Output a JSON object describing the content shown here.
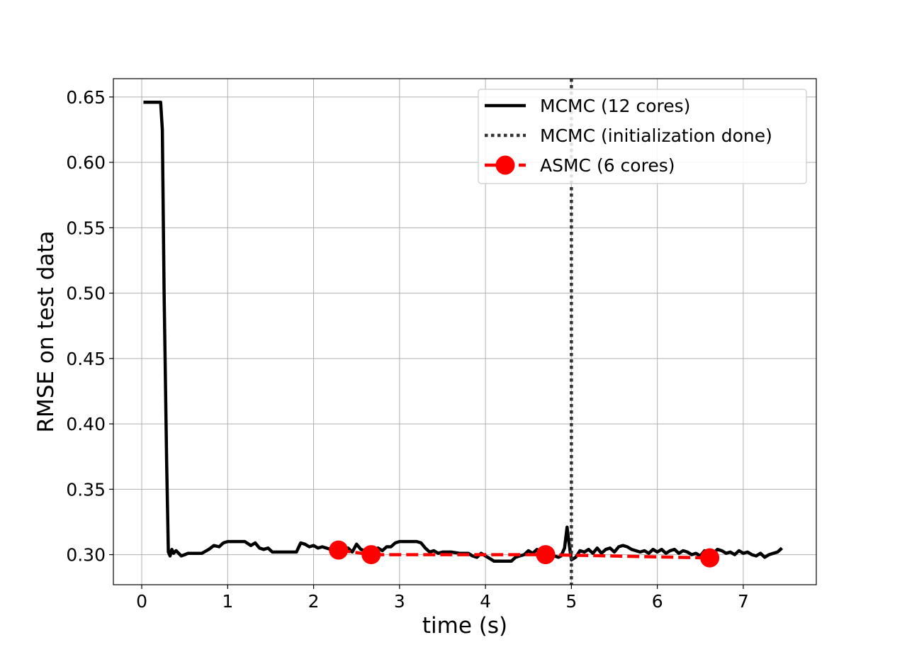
{
  "chart_data": {
    "type": "line",
    "xlabel": "time (s)",
    "ylabel": "RMSE on test data",
    "xlim": [
      -0.33,
      7.85
    ],
    "ylim": [
      0.277,
      0.664
    ],
    "x_ticks": [
      0,
      1,
      2,
      3,
      4,
      5,
      6,
      7
    ],
    "y_ticks": [
      0.3,
      0.35,
      0.4,
      0.45,
      0.5,
      0.55,
      0.6,
      0.65
    ],
    "x_tick_labels": [
      "0",
      "1",
      "2",
      "3",
      "4",
      "5",
      "6",
      "7"
    ],
    "y_tick_labels": [
      "0.30",
      "0.35",
      "0.40",
      "0.45",
      "0.50",
      "0.55",
      "0.60",
      "0.65"
    ],
    "grid": true,
    "legend_position": "top-right",
    "series": [
      {
        "name": "MCMC (12 cores)",
        "style": "solid",
        "color": "#000000",
        "x": [
          0.02,
          0.22,
          0.24,
          0.26,
          0.29,
          0.31,
          0.33,
          0.35,
          0.37,
          0.4,
          0.43,
          0.46,
          0.5,
          0.54,
          0.6,
          0.7,
          0.78,
          0.84,
          0.9,
          0.95,
          1.0,
          1.05,
          1.1,
          1.2,
          1.27,
          1.32,
          1.37,
          1.42,
          1.47,
          1.52,
          1.56,
          1.62,
          1.7,
          1.8,
          1.85,
          1.9,
          1.95,
          2.0,
          2.05,
          2.1,
          2.2,
          2.3,
          2.4,
          2.45,
          2.5,
          2.55,
          2.6,
          2.65,
          2.7,
          2.75,
          2.8,
          2.85,
          2.9,
          2.95,
          3.0,
          3.1,
          3.2,
          3.25,
          3.3,
          3.35,
          3.4,
          3.45,
          3.5,
          3.55,
          3.6,
          3.7,
          3.8,
          3.85,
          3.9,
          3.95,
          4.0,
          4.05,
          4.1,
          4.2,
          4.3,
          4.35,
          4.4,
          4.45,
          4.5,
          4.55,
          4.6,
          4.65,
          4.7,
          4.75,
          4.8,
          4.85,
          4.88,
          4.92,
          4.95,
          4.97,
          5.0,
          5.05,
          5.1,
          5.15,
          5.2,
          5.25,
          5.3,
          5.35,
          5.4,
          5.45,
          5.5,
          5.55,
          5.6,
          5.65,
          5.7,
          5.75,
          5.8,
          5.85,
          5.9,
          5.95,
          6.0,
          6.05,
          6.1,
          6.15,
          6.2,
          6.25,
          6.3,
          6.35,
          6.4,
          6.45,
          6.5,
          6.55,
          6.6,
          6.65,
          6.7,
          6.75,
          6.8,
          6.85,
          6.9,
          6.95,
          7.0,
          7.05,
          7.1,
          7.15,
          7.2,
          7.25,
          7.3,
          7.35,
          7.4,
          7.45
        ],
        "values": [
          0.646,
          0.646,
          0.625,
          0.5,
          0.37,
          0.302,
          0.299,
          0.304,
          0.301,
          0.303,
          0.301,
          0.299,
          0.3,
          0.301,
          0.301,
          0.301,
          0.304,
          0.307,
          0.306,
          0.309,
          0.31,
          0.31,
          0.31,
          0.31,
          0.307,
          0.309,
          0.305,
          0.304,
          0.305,
          0.302,
          0.302,
          0.302,
          0.302,
          0.302,
          0.309,
          0.308,
          0.306,
          0.307,
          0.305,
          0.306,
          0.304,
          0.304,
          0.305,
          0.302,
          0.308,
          0.304,
          0.303,
          0.301,
          0.304,
          0.305,
          0.303,
          0.306,
          0.306,
          0.309,
          0.31,
          0.31,
          0.31,
          0.309,
          0.305,
          0.302,
          0.303,
          0.301,
          0.302,
          0.302,
          0.302,
          0.301,
          0.301,
          0.299,
          0.298,
          0.301,
          0.299,
          0.297,
          0.295,
          0.295,
          0.295,
          0.298,
          0.299,
          0.3,
          0.303,
          0.301,
          0.304,
          0.3,
          0.299,
          0.301,
          0.299,
          0.298,
          0.299,
          0.305,
          0.321,
          0.31,
          0.296,
          0.298,
          0.303,
          0.302,
          0.304,
          0.301,
          0.305,
          0.301,
          0.304,
          0.305,
          0.302,
          0.306,
          0.307,
          0.306,
          0.304,
          0.303,
          0.302,
          0.303,
          0.301,
          0.304,
          0.302,
          0.304,
          0.301,
          0.303,
          0.304,
          0.301,
          0.303,
          0.302,
          0.3,
          0.301,
          0.299,
          0.303,
          0.302,
          0.301,
          0.304,
          0.303,
          0.301,
          0.302,
          0.3,
          0.303,
          0.301,
          0.302,
          0.3,
          0.299,
          0.301,
          0.298,
          0.3,
          0.301,
          0.302,
          0.305
        ]
      },
      {
        "name": "MCMC (initialization done)",
        "style": "dotted",
        "color": "#333333",
        "vertical_x": 5.0
      },
      {
        "name": "ASMC (6 cores)",
        "style": "dashed-marker",
        "color": "#ff0000",
        "x": [
          2.29,
          2.67,
          4.7,
          6.61
        ],
        "values": [
          0.3035,
          0.3,
          0.3,
          0.2975
        ]
      }
    ]
  }
}
